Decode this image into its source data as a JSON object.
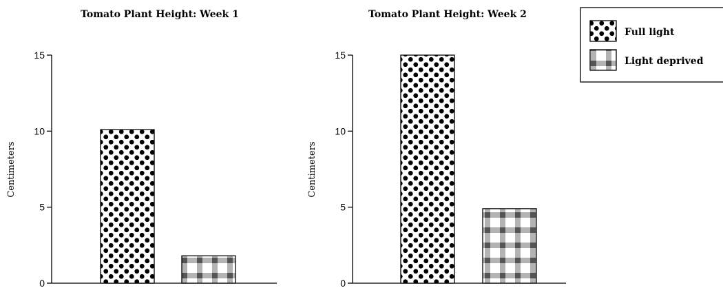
{
  "chart_data": [
    {
      "type": "bar",
      "title": "Tomato Plant Height: Week 1",
      "xlabel": "",
      "ylabel": "Centimeters",
      "ylim": [
        0,
        15
      ],
      "yticks": [
        0,
        5,
        10,
        15
      ],
      "grid": false,
      "categories": [
        "Full light",
        "Light deprived"
      ],
      "values": [
        10.1,
        1.8
      ]
    },
    {
      "type": "bar",
      "title": "Tomato Plant Height: Week 2",
      "xlabel": "",
      "ylabel": "Centimeters",
      "ylim": [
        0,
        15
      ],
      "yticks": [
        0,
        5,
        10,
        15
      ],
      "grid": false,
      "categories": [
        "Full light",
        "Light deprived"
      ],
      "values": [
        15,
        4.9
      ]
    }
  ],
  "legend": {
    "placement": "top-right",
    "items": [
      {
        "label": "Full light",
        "pattern": "polka-dot"
      },
      {
        "label": "Light deprived",
        "pattern": "checkered"
      }
    ]
  },
  "colors": {
    "ink": "#000000",
    "background": "#ffffff",
    "check_dark": "#555555",
    "check_mid": "#b3b3b3"
  }
}
